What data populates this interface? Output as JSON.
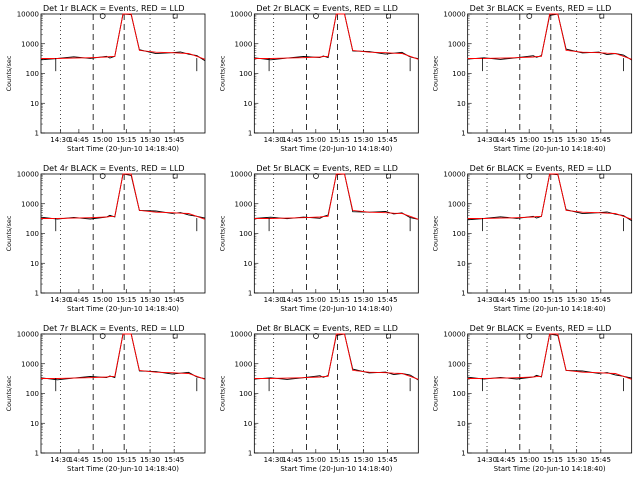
{
  "chart_data": [
    {
      "type": "line",
      "title": "Det 1r BLACK = Events, RED = LLD",
      "xlabel": "Start Time (20-Jun-10 14:18:40)",
      "ylabel": "Counts/sec",
      "ylog": true,
      "ylim": [
        1,
        10000
      ],
      "yticks": [
        "1",
        "10",
        "100",
        "1000",
        "10000"
      ],
      "xticks": [
        "14:30",
        "14:45",
        "15:00",
        "15:15",
        "15:30",
        "15:45"
      ],
      "grid": false,
      "series": [
        {
          "name": "Events",
          "color": "#000000"
        },
        {
          "name": "LLD",
          "color": "#ff0000"
        }
      ],
      "events": {
        "x": [
          0.0,
          0.1,
          0.2,
          0.3,
          0.4,
          0.42,
          0.45,
          0.5,
          0.55,
          0.6,
          0.7,
          0.8,
          0.85,
          0.9,
          0.95,
          1.0
        ],
        "y": [
          320,
          320,
          330,
          340,
          360,
          370,
          380,
          10000,
          10000,
          600,
          520,
          500,
          480,
          470,
          380,
          300
        ]
      }
    },
    {
      "type": "line",
      "title": "Det 2r BLACK = Events, RED = LLD",
      "xlabel": "Start Time (20-Jun-10 14:18:40)",
      "ylabel": "Counts/sec",
      "ylog": true,
      "ylim": [
        1,
        10000
      ],
      "yticks": [
        "1",
        "10",
        "100",
        "1000",
        "10000"
      ],
      "xticks": [
        "14:30",
        "14:45",
        "15:00",
        "15:15",
        "15:30",
        "15:45"
      ],
      "grid": false,
      "series": [
        {
          "name": "Events",
          "color": "#000000"
        },
        {
          "name": "LLD",
          "color": "#ff0000"
        }
      ]
    },
    {
      "type": "line",
      "title": "Det 3r BLACK = Events, RED = LLD",
      "xlabel": "Start Time (20-Jun-10 14:18:40)",
      "ylabel": "Counts/sec",
      "ylog": true,
      "ylim": [
        1,
        10000
      ],
      "yticks": [
        "1",
        "10",
        "100",
        "1000",
        "10000"
      ],
      "xticks": [
        "14:30",
        "14:45",
        "15:00",
        "15:15",
        "15:30",
        "15:45"
      ],
      "grid": false,
      "series": [
        {
          "name": "Events",
          "color": "#000000"
        },
        {
          "name": "LLD",
          "color": "#ff0000"
        }
      ]
    },
    {
      "type": "line",
      "title": "Det 4r BLACK = Events, RED = LLD",
      "xlabel": "Start Time (20-Jun-10 14:18:40)",
      "ylabel": "Counts/sec",
      "ylog": true,
      "ylim": [
        1,
        10000
      ],
      "yticks": [
        "1",
        "10",
        "100",
        "1000",
        "10000"
      ],
      "xticks": [
        "14:30",
        "14:45",
        "15:00",
        "15:15",
        "15:30",
        "15:45"
      ],
      "grid": false,
      "series": [
        {
          "name": "Events",
          "color": "#000000"
        },
        {
          "name": "LLD",
          "color": "#ff0000"
        }
      ]
    },
    {
      "type": "line",
      "title": "Det 5r BLACK = Events, RED = LLD",
      "xlabel": "Start Time (20-Jun-10 14:18:40)",
      "ylabel": "Counts/sec",
      "ylog": true,
      "ylim": [
        1,
        10000
      ],
      "yticks": [
        "1",
        "10",
        "100",
        "1000",
        "10000"
      ],
      "xticks": [
        "14:30",
        "14:45",
        "15:00",
        "15:15",
        "15:30",
        "15:45"
      ],
      "grid": false,
      "series": [
        {
          "name": "Events",
          "color": "#000000"
        },
        {
          "name": "LLD",
          "color": "#ff0000"
        }
      ]
    },
    {
      "type": "line",
      "title": "Det 6r BLACK = Events, RED = LLD",
      "xlabel": "Start Time (20-Jun-10 14:18:40)",
      "ylabel": "Counts/sec",
      "ylog": true,
      "ylim": [
        1,
        10000
      ],
      "yticks": [
        "1",
        "10",
        "100",
        "1000",
        "10000"
      ],
      "xticks": [
        "14:30",
        "14:45",
        "15:00",
        "15:15",
        "15:30",
        "15:45"
      ],
      "grid": false,
      "series": [
        {
          "name": "Events",
          "color": "#000000"
        },
        {
          "name": "LLD",
          "color": "#ff0000"
        }
      ]
    },
    {
      "type": "line",
      "title": "Det 7r BLACK = Events, RED = LLD",
      "xlabel": "Start Time (20-Jun-10 14:18:40)",
      "ylabel": "Counts/sec",
      "ylog": true,
      "ylim": [
        1,
        10000
      ],
      "yticks": [
        "1",
        "10",
        "100",
        "1000",
        "10000"
      ],
      "xticks": [
        "14:30",
        "14:45",
        "15:00",
        "15:15",
        "15:30",
        "15:45"
      ],
      "grid": false,
      "series": [
        {
          "name": "Events",
          "color": "#000000"
        },
        {
          "name": "LLD",
          "color": "#ff0000"
        }
      ]
    },
    {
      "type": "line",
      "title": "Det 8r BLACK = Events, RED = LLD",
      "xlabel": "Start Time (20-Jun-10 14:18:40)",
      "ylabel": "Counts/sec",
      "ylog": true,
      "ylim": [
        1,
        10000
      ],
      "yticks": [
        "1",
        "10",
        "100",
        "1000",
        "10000"
      ],
      "xticks": [
        "14:30",
        "14:45",
        "15:00",
        "15:15",
        "15:30",
        "15:45"
      ],
      "grid": false,
      "series": [
        {
          "name": "Events",
          "color": "#000000"
        },
        {
          "name": "LLD",
          "color": "#ff0000"
        }
      ]
    },
    {
      "type": "line",
      "title": "Det 9r BLACK = Events, RED = LLD",
      "xlabel": "Start Time (20-Jun-10 14:18:40)",
      "ylabel": "Counts/sec",
      "ylog": true,
      "ylim": [
        1,
        10000
      ],
      "yticks": [
        "1",
        "10",
        "100",
        "1000",
        "10000"
      ],
      "xticks": [
        "14:30",
        "14:45",
        "15:00",
        "15:15",
        "15:30",
        "15:45"
      ],
      "grid": false,
      "series": [
        {
          "name": "Events",
          "color": "#000000"
        },
        {
          "name": "LLD",
          "color": "#ff0000"
        }
      ]
    }
  ]
}
